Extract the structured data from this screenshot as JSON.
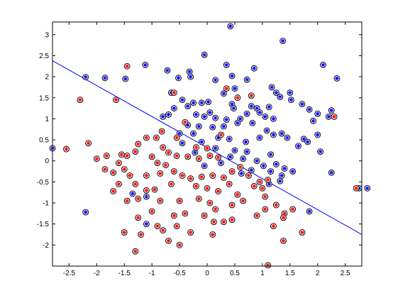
{
  "chart_data": {
    "type": "scatter",
    "title": "",
    "xlabel": "",
    "ylabel": "",
    "xlim": [
      -2.8,
      2.8
    ],
    "ylim": [
      -2.5,
      3.3
    ],
    "xticks": [
      -2.5,
      -2,
      -1.5,
      -1,
      -0.5,
      0,
      0.5,
      1,
      1.5,
      2,
      2.5
    ],
    "yticks": [
      -2,
      -1.5,
      -1,
      -0.5,
      0,
      0.5,
      1,
      1.5,
      2,
      2.5,
      3
    ],
    "xtick_labels": [
      "-2.5",
      "-2",
      "-1.5",
      "-1",
      "-0.5",
      "0",
      "0.5",
      "1",
      "1.5",
      "2",
      "2.5"
    ],
    "ytick_labels": [
      "-2",
      "-1.5",
      "-1",
      "-0.5",
      "0",
      "0.5",
      "1",
      "1.5",
      "2",
      "2.5",
      "3"
    ],
    "grid": false,
    "legend": "none",
    "boundary": {
      "from": [
        -2.8,
        2.38
      ],
      "to": [
        2.8,
        -1.75
      ],
      "color": "#0000ff"
    },
    "series": [
      {
        "color": "#0000ff",
        "marker": "asterisk-circle",
        "points": [
          [
            0.42,
            3.2
          ],
          [
            1.37,
            2.85
          ],
          [
            -0.05,
            2.52
          ],
          [
            -1.12,
            2.28
          ],
          [
            -0.72,
            2.15
          ],
          [
            -0.52,
            1.97
          ],
          [
            -1.85,
            1.97
          ],
          [
            -1.48,
            1.95
          ],
          [
            -2.2,
            1.99
          ],
          [
            0.15,
            1.92
          ],
          [
            0.35,
            2.28
          ],
          [
            0.45,
            2.02
          ],
          [
            0.5,
            1.72
          ],
          [
            0.3,
            1.6
          ],
          [
            0.72,
            1.93
          ],
          [
            0.85,
            2.2
          ],
          [
            1.17,
            1.75
          ],
          [
            1.12,
            1.28
          ],
          [
            1.25,
            1.62
          ],
          [
            1.32,
            1.52
          ],
          [
            1.5,
            1.62
          ],
          [
            1.52,
            1.45
          ],
          [
            1.72,
            1.35
          ],
          [
            2.35,
            1.96
          ],
          [
            2.25,
            1.2
          ],
          [
            2.0,
            1.12
          ],
          [
            1.85,
            1.22
          ],
          [
            1.92,
            0.95
          ],
          [
            2.2,
            1.05
          ],
          [
            -0.32,
            2.12
          ],
          [
            -0.3,
            2.0
          ],
          [
            -0.25,
            1.38
          ],
          [
            -0.35,
            1.3
          ],
          [
            -0.6,
            1.25
          ],
          [
            -0.45,
            1.45
          ],
          [
            -0.65,
            1.62
          ],
          [
            -0.1,
            1.38
          ],
          [
            0.02,
            1.4
          ],
          [
            0.45,
            1.35
          ],
          [
            0.48,
            1.25
          ],
          [
            0.8,
            1.3
          ],
          [
            0.9,
            1.25
          ],
          [
            -0.2,
            1.1
          ],
          [
            -0.05,
            1.05
          ],
          [
            0.05,
            1.15
          ],
          [
            0.15,
            1.02
          ],
          [
            0.35,
            0.98
          ],
          [
            0.6,
            1.0
          ],
          [
            0.72,
            1.12
          ],
          [
            0.95,
            1.15
          ],
          [
            1.05,
            1.05
          ],
          [
            1.2,
            1.0
          ],
          [
            -0.7,
            1.1
          ],
          [
            -0.8,
            1.05
          ],
          [
            -0.35,
            0.85
          ],
          [
            -0.15,
            0.82
          ],
          [
            0.1,
            0.8
          ],
          [
            0.3,
            0.82
          ],
          [
            0.55,
            0.9
          ],
          [
            0.82,
            0.9
          ],
          [
            1.08,
            0.72
          ],
          [
            1.35,
            0.65
          ],
          [
            1.45,
            0.55
          ],
          [
            1.75,
            0.52
          ],
          [
            1.82,
            0.45
          ],
          [
            2.05,
            0.22
          ],
          [
            2.0,
            0.62
          ],
          [
            -0.5,
            0.65
          ],
          [
            -0.25,
            0.65
          ],
          [
            0.2,
            0.55
          ],
          [
            0.4,
            0.52
          ],
          [
            0.7,
            0.45
          ],
          [
            0.95,
            0.55
          ],
          [
            1.2,
            0.62
          ],
          [
            -0.45,
            0.42
          ],
          [
            -0.1,
            0.45
          ],
          [
            0.15,
            0.3
          ],
          [
            0.5,
            0.25
          ],
          [
            0.72,
            0.22
          ],
          [
            1.15,
            0.15
          ],
          [
            1.65,
            0.35
          ],
          [
            -0.22,
            0.2
          ],
          [
            0.42,
            0.1
          ],
          [
            0.65,
            0.05
          ],
          [
            0.9,
            0.0
          ],
          [
            1.25,
            -0.08
          ],
          [
            1.4,
            -0.18
          ],
          [
            1.55,
            -0.25
          ],
          [
            2.25,
            -0.28
          ],
          [
            -0.05,
            -0.12
          ],
          [
            0.25,
            -0.05
          ],
          [
            0.62,
            -0.3
          ],
          [
            0.8,
            -0.22
          ],
          [
            1.02,
            -0.12
          ],
          [
            1.15,
            -0.25
          ],
          [
            1.35,
            -0.35
          ],
          [
            1.12,
            -0.55
          ],
          [
            1.32,
            -0.48
          ],
          [
            2.75,
            -0.65
          ],
          [
            2.9,
            -0.65
          ],
          [
            -1.35,
            -0.78
          ],
          [
            -1.1,
            -0.85
          ],
          [
            -2.2,
            -1.22
          ],
          [
            1.85,
            -1.2
          ],
          [
            -1.1,
            -1.5
          ],
          [
            -2.8,
            0.3
          ],
          [
            2.1,
            2.28
          ]
        ]
      },
      {
        "color": "#ff0000",
        "marker": "asterisk-circle",
        "points": [
          [
            -1.45,
            2.25
          ],
          [
            -1.65,
            1.45
          ],
          [
            -2.3,
            1.45
          ],
          [
            -2.55,
            0.28
          ],
          [
            -2.15,
            0.42
          ],
          [
            -1.1,
            0.55
          ],
          [
            -0.92,
            0.55
          ],
          [
            -1.25,
            0.4
          ],
          [
            -0.82,
            0.7
          ],
          [
            -1.3,
            0.22
          ],
          [
            -1.55,
            0.15
          ],
          [
            -1.45,
            0.12
          ],
          [
            -1.82,
            0.12
          ],
          [
            -2.0,
            0.05
          ],
          [
            -1.6,
            -0.05
          ],
          [
            -1.85,
            -0.2
          ],
          [
            -1.7,
            -0.28
          ],
          [
            -1.5,
            -0.2
          ],
          [
            -1.4,
            -0.35
          ],
          [
            -1.0,
            0.1
          ],
          [
            -0.9,
            -0.05
          ],
          [
            -0.75,
            -0.1
          ],
          [
            -0.55,
            0.12
          ],
          [
            -0.35,
            0.1
          ],
          [
            -0.15,
            0.05
          ],
          [
            0.05,
            0.12
          ],
          [
            0.2,
            0.08
          ],
          [
            -0.6,
            -0.25
          ],
          [
            -0.45,
            -0.35
          ],
          [
            -0.3,
            -0.42
          ],
          [
            -0.1,
            -0.38
          ],
          [
            0.1,
            -0.35
          ],
          [
            0.3,
            -0.4
          ],
          [
            0.45,
            -0.25
          ],
          [
            -1.1,
            -0.35
          ],
          [
            -1.3,
            -0.55
          ],
          [
            -1.6,
            -0.55
          ],
          [
            -1.7,
            -0.72
          ],
          [
            -1.1,
            -0.7
          ],
          [
            -0.95,
            -0.68
          ],
          [
            -0.65,
            -0.55
          ],
          [
            -0.2,
            -0.6
          ],
          [
            0.0,
            -0.65
          ],
          [
            0.2,
            -0.72
          ],
          [
            0.4,
            -0.55
          ],
          [
            0.55,
            -0.8
          ],
          [
            -1.45,
            -0.95
          ],
          [
            -1.25,
            -0.9
          ],
          [
            -0.85,
            -0.95
          ],
          [
            -0.5,
            -0.95
          ],
          [
            -0.15,
            -0.9
          ],
          [
            0.05,
            -1.0
          ],
          [
            0.15,
            -1.15
          ],
          [
            0.45,
            -1.05
          ],
          [
            0.65,
            -0.95
          ],
          [
            0.85,
            -0.6
          ],
          [
            0.95,
            -0.5
          ],
          [
            1.1,
            -0.45
          ],
          [
            1.05,
            -0.85
          ],
          [
            1.25,
            -1.05
          ],
          [
            1.4,
            -1.25
          ],
          [
            1.55,
            -1.15
          ],
          [
            -1.25,
            -1.35
          ],
          [
            -1.0,
            -1.2
          ],
          [
            -0.6,
            -1.3
          ],
          [
            -0.4,
            -1.25
          ],
          [
            -0.05,
            -1.3
          ],
          [
            0.12,
            -1.45
          ],
          [
            0.3,
            -1.45
          ],
          [
            0.45,
            -1.4
          ],
          [
            0.9,
            -1.3
          ],
          [
            1.05,
            -1.15
          ],
          [
            1.2,
            -1.55
          ],
          [
            1.38,
            -1.35
          ],
          [
            1.72,
            -1.7
          ],
          [
            -1.5,
            -1.7
          ],
          [
            -1.2,
            -1.75
          ],
          [
            -0.8,
            -1.65
          ],
          [
            -0.55,
            -1.55
          ],
          [
            -0.3,
            -1.7
          ],
          [
            -0.7,
            -1.9
          ],
          [
            -0.5,
            -2.0
          ],
          [
            -0.9,
            -1.55
          ],
          [
            -1.3,
            -2.15
          ],
          [
            0.1,
            -1.75
          ],
          [
            1.38,
            -1.9
          ],
          [
            1.1,
            -2.48
          ],
          [
            0.0,
            0.3
          ],
          [
            -0.8,
            0.32
          ],
          [
            -0.2,
            0.32
          ],
          [
            0.35,
            1.72
          ],
          [
            0.55,
            1.5
          ],
          [
            -0.6,
            1.62
          ],
          [
            2.3,
            1.05
          ],
          [
            2.7,
            -0.65
          ],
          [
            0.8,
            1.55
          ],
          [
            0.25,
            0.62
          ],
          [
            -0.4,
            0.92
          ],
          [
            -0.55,
            0.55
          ],
          [
            0.6,
            -0.15
          ],
          [
            0.75,
            -0.35
          ],
          [
            1.0,
            -0.65
          ],
          [
            -0.7,
            0.2
          ],
          [
            -0.85,
            -0.3
          ]
        ]
      }
    ]
  }
}
